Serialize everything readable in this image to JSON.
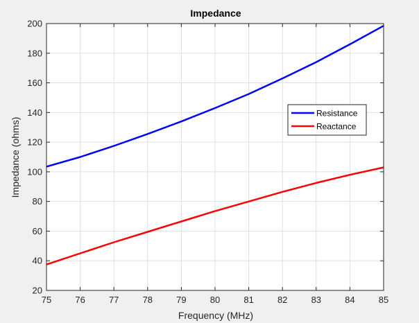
{
  "chart_data": {
    "type": "line",
    "title": "Impedance",
    "xlabel": "Frequency (MHz)",
    "ylabel": "Impedance (ohms)",
    "xlim": [
      75,
      85
    ],
    "ylim": [
      20,
      200
    ],
    "xticks": [
      75,
      76,
      77,
      78,
      79,
      80,
      81,
      82,
      83,
      84,
      85
    ],
    "yticks": [
      20,
      40,
      60,
      80,
      100,
      120,
      140,
      160,
      180,
      200
    ],
    "grid": true,
    "legend_position": "right",
    "x": [
      75,
      76,
      77,
      78,
      79,
      80,
      81,
      82,
      83,
      84,
      85
    ],
    "series": [
      {
        "name": "Resistance",
        "color": "#0000ff",
        "values": [
          103.5,
          110,
          117.5,
          125.5,
          134,
          143,
          152.5,
          163,
          174,
          186,
          198.5
        ]
      },
      {
        "name": "Reactance",
        "color": "#ff0000",
        "values": [
          37.5,
          45,
          52.5,
          59.5,
          66.5,
          73.5,
          80,
          86.5,
          92.5,
          98,
          103
        ]
      }
    ]
  }
}
